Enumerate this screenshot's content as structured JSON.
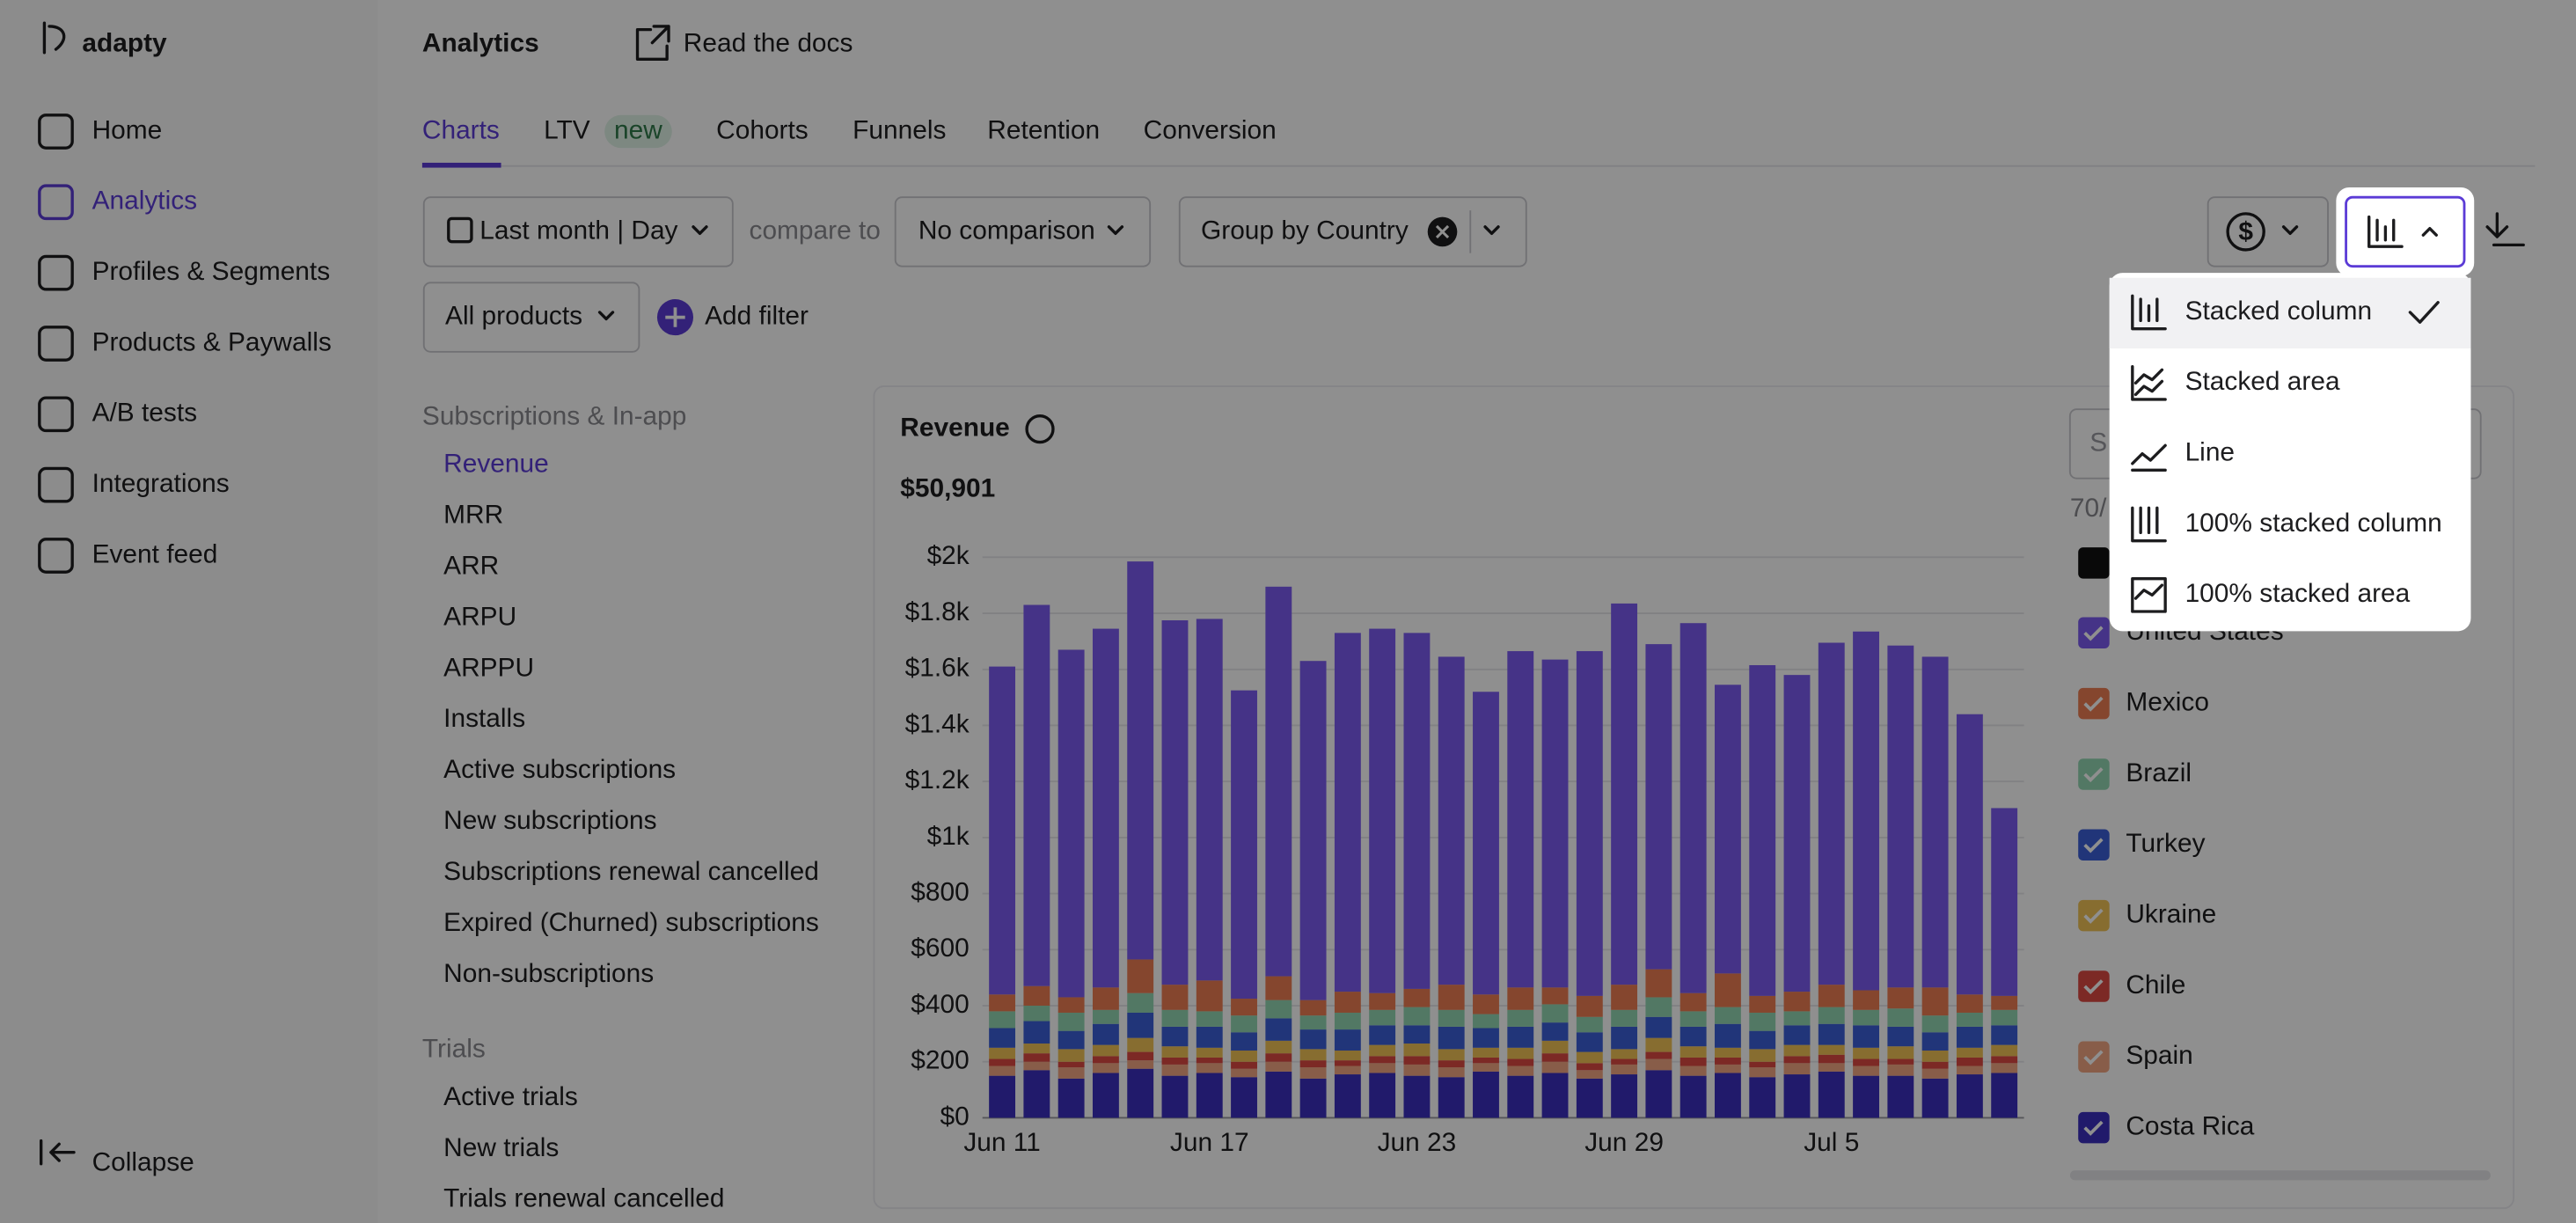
{
  "logo": "adapty",
  "sidebar": {
    "items": [
      "Home",
      "Analytics",
      "Profiles & Segments",
      "Products & Paywalls",
      "A/B tests",
      "Integrations",
      "Event feed"
    ],
    "active": 1,
    "collapse": "Collapse"
  },
  "header": {
    "title": "Analytics",
    "docs_link": "Read the docs"
  },
  "tabs": {
    "items": [
      "Charts",
      "LTV",
      "Cohorts",
      "Funnels",
      "Retention",
      "Conversion"
    ],
    "active": 0,
    "badge": "new"
  },
  "filters": {
    "period": "Last month | Day",
    "compare_label": "compare to",
    "comparison": "No comparison",
    "group_by": "Group by Country",
    "products": "All products",
    "add_filter": "Add filter"
  },
  "metrics": {
    "sections": [
      {
        "title": "Subscriptions & In-app",
        "items": [
          "Revenue",
          "MRR",
          "ARR",
          "ARPU",
          "ARPPU",
          "Installs",
          "Active subscriptions",
          "New subscriptions",
          "Subscriptions renewal cancelled",
          "Expired (Churned) subscriptions",
          "Non-subscriptions"
        ]
      },
      {
        "title": "Trials",
        "items": [
          "Active trials",
          "New trials",
          "Trials renewal cancelled"
        ]
      }
    ],
    "active": "Revenue"
  },
  "legend_panel": {
    "search_placeholder": "S",
    "count": "70/"
  },
  "chart_type_menu": {
    "options": [
      "Stacked column",
      "Stacked area",
      "Line",
      "100% stacked column",
      "100% stacked area"
    ],
    "selected": 0
  },
  "chart_data": {
    "type": "bar",
    "stacked": true,
    "title": "Revenue",
    "total": "$50,901",
    "categories": [
      "Jun 11",
      null,
      null,
      null,
      null,
      null,
      "Jun 17",
      null,
      null,
      null,
      null,
      null,
      "Jun 23",
      null,
      null,
      null,
      null,
      null,
      "Jun 29",
      null,
      null,
      null,
      null,
      null,
      "Jul 5",
      null,
      null,
      null,
      null,
      null
    ],
    "ylim": [
      0,
      2000
    ],
    "yticks": [
      {
        "value": 0,
        "label": "$0"
      },
      {
        "value": 200,
        "label": "$200"
      },
      {
        "value": 400,
        "label": "$400"
      },
      {
        "value": 600,
        "label": "$600"
      },
      {
        "value": 800,
        "label": "$800"
      },
      {
        "value": 1000,
        "label": "$1k"
      },
      {
        "value": 1200,
        "label": "$1.2k"
      },
      {
        "value": 1400,
        "label": "$1.4k"
      },
      {
        "value": 1600,
        "label": "$1.6k"
      },
      {
        "value": 1800,
        "label": "$1.8k"
      },
      {
        "value": 2000,
        "label": "$2k"
      }
    ],
    "grid": true,
    "series": [
      {
        "name": "United States",
        "color": "#7b5cf0",
        "values": [
          1170,
          1360,
          1240,
          1280,
          1420,
          1300,
          1290,
          1100,
          1390,
          1210,
          1280,
          1300,
          1270,
          1170,
          1080,
          1200,
          1170,
          1230,
          1360,
          1160,
          1320,
          1030,
          1180,
          1130,
          1220,
          1280,
          1220,
          1180,
          1000,
          670
        ]
      },
      {
        "name": "Mexico",
        "color": "#ee7d52",
        "values": [
          60,
          70,
          55,
          80,
          120,
          90,
          110,
          60,
          85,
          55,
          75,
          60,
          65,
          90,
          70,
          80,
          60,
          75,
          90,
          100,
          65,
          120,
          60,
          70,
          80,
          70,
          75,
          100,
          65,
          50
        ]
      },
      {
        "name": "Brazil",
        "color": "#92d6b3",
        "values": [
          60,
          55,
          65,
          50,
          70,
          60,
          55,
          60,
          65,
          50,
          60,
          55,
          65,
          60,
          50,
          60,
          65,
          55,
          60,
          70,
          55,
          60,
          65,
          50,
          60,
          55,
          65,
          60,
          50,
          55
        ]
      },
      {
        "name": "Turkey",
        "color": "#3c5fd8",
        "values": [
          70,
          80,
          65,
          75,
          90,
          70,
          75,
          65,
          80,
          70,
          75,
          70,
          65,
          80,
          70,
          75,
          65,
          70,
          80,
          75,
          70,
          85,
          65,
          70,
          75,
          80,
          70,
          65,
          75,
          70
        ]
      },
      {
        "name": "Ukraine",
        "color": "#f0c357",
        "values": [
          40,
          35,
          45,
          40,
          50,
          40,
          35,
          40,
          45,
          40,
          35,
          40,
          45,
          40,
          35,
          40,
          45,
          40,
          35,
          50,
          40,
          35,
          45,
          40,
          35,
          40,
          45,
          40,
          35,
          40
        ]
      },
      {
        "name": "Chile",
        "color": "#de4a43",
        "values": [
          25,
          30,
          20,
          25,
          30,
          25,
          20,
          25,
          30,
          25,
          20,
          25,
          30,
          25,
          20,
          25,
          30,
          25,
          20,
          25,
          30,
          25,
          20,
          25,
          30,
          25,
          20,
          25,
          30,
          25
        ]
      },
      {
        "name": "Spain",
        "color": "#f2a783",
        "values": [
          35,
          30,
          40,
          35,
          30,
          40,
          35,
          30,
          35,
          40,
          30,
          35,
          40,
          35,
          30,
          35,
          40,
          30,
          35,
          40,
          35,
          30,
          35,
          40,
          30,
          35,
          40,
          35,
          30,
          35
        ]
      },
      {
        "name": "Costa Rica",
        "color": "#3b2fbf",
        "values": [
          150,
          170,
          140,
          160,
          175,
          150,
          160,
          145,
          165,
          140,
          155,
          160,
          150,
          145,
          165,
          150,
          160,
          140,
          155,
          170,
          150,
          160,
          145,
          155,
          165,
          150,
          150,
          140,
          155,
          160
        ]
      }
    ]
  }
}
